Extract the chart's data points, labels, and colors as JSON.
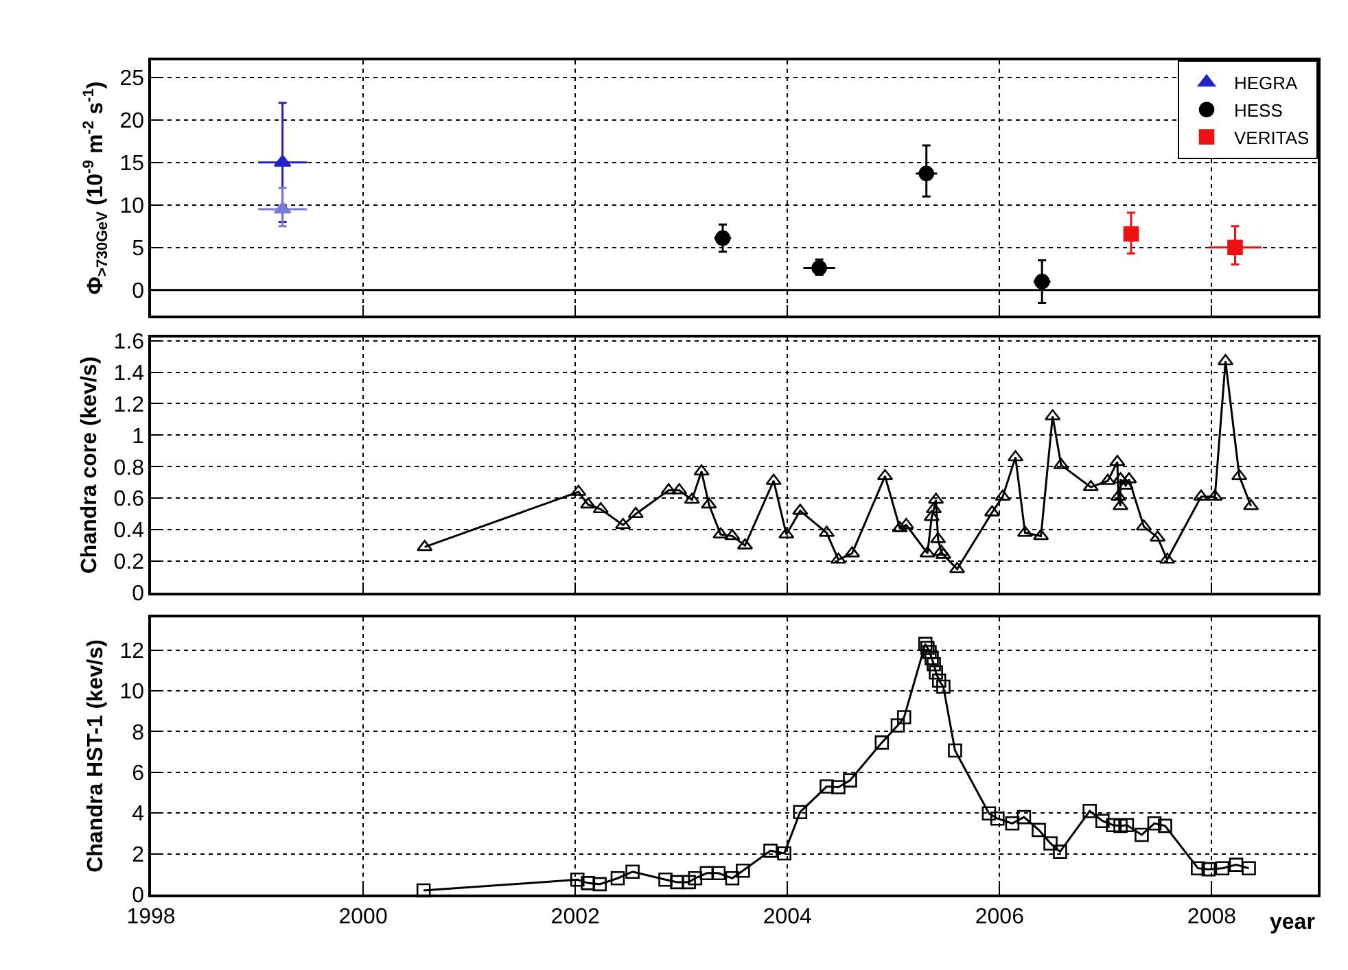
{
  "chart_data": [
    {
      "type": "scatter",
      "ylabel": "Φ$_{>730GeV}$ (10$^{-9}$ m$^{-2}$ s$^{-1}$)",
      "xlim": [
        1998,
        2009
      ],
      "xticks": [
        1998,
        2000,
        2002,
        2004,
        2006,
        2008
      ],
      "ylim": [
        -3,
        27
      ],
      "yticks": [
        0,
        5,
        10,
        15,
        20,
        25
      ],
      "grid": true,
      "legend": "top right",
      "tick_labels": "y",
      "ref_lines": [
        {
          "axis": "y",
          "value": 0,
          "color": "#000000",
          "line_style": "solid"
        }
      ],
      "series": [
        {
          "name": "HEGRA",
          "color": "#2222cc",
          "marker": "triangle",
          "x": [
            1999.24
          ],
          "values": [
            15
          ],
          "errors": [
            [
              8,
              22
            ]
          ],
          "xerrors": [
            0.23
          ]
        },
        {
          "color": "#7b7bd6",
          "marker": "triangle",
          "x": [
            1999.24
          ],
          "values": [
            9.5
          ],
          "errors": [
            [
              7.5,
              12
            ]
          ],
          "xerrors": [
            0.23
          ]
        },
        {
          "name": "HESS",
          "color": "#000000",
          "marker": "circle",
          "x": [
            2003.39,
            2004.3,
            2005.31,
            2006.4
          ],
          "values": [
            6.1,
            2.6,
            13.7,
            1.0
          ],
          "errors": [
            [
              4.5,
              7.7
            ],
            [
              1.8,
              3.6
            ],
            [
              11,
              17
            ],
            [
              -1.5,
              3.5
            ]
          ],
          "xerrors": [
            0.08,
            0.15,
            0.1,
            0.08
          ]
        },
        {
          "name": "VERITAS",
          "color": "#ee1111",
          "marker": "square",
          "x": [
            2007.24,
            2008.22
          ],
          "values": [
            6.6,
            5.0
          ],
          "errors": [
            [
              4.3,
              9.1
            ],
            [
              3,
              7.5
            ]
          ],
          "xerrors": [
            0.05,
            0.25
          ]
        }
      ]
    },
    {
      "type": "line",
      "ylabel": "Chandra core (kev/s)",
      "xlim": [
        1998,
        2009
      ],
      "xticks": [
        1998,
        2000,
        2002,
        2004,
        2006,
        2008
      ],
      "ylim": [
        0,
        1.62
      ],
      "yticks": [
        0,
        0.2,
        0.4,
        0.6,
        0.8,
        1,
        1.2,
        1.4,
        1.6
      ],
      "grid": true,
      "tick_labels": "y",
      "marker": "triangle",
      "series": [
        {
          "color": "#000000",
          "x": [
            2000.58,
            2002.03,
            2002.12,
            2002.24,
            2002.45,
            2002.57,
            2002.88,
            2002.98,
            2003.1,
            2003.19,
            2003.26,
            2003.37,
            2003.48,
            2003.6,
            2003.87,
            2003.99,
            2004.12,
            2004.37,
            2004.48,
            2004.61,
            2004.92,
            2005.06,
            2005.12,
            2005.32,
            2005.36,
            2005.38,
            2005.4,
            2005.42,
            2005.45,
            2005.47,
            2005.6,
            2005.93,
            2006.03,
            2006.15,
            2006.24,
            2006.39,
            2006.5,
            2006.58,
            2006.86,
            2007.02,
            2007.11,
            2007.12,
            2007.14,
            2007.14,
            2007.19,
            2007.22,
            2007.36,
            2007.49,
            2007.58,
            2007.9,
            2008.03,
            2008.13,
            2008.26,
            2008.37
          ],
          "values": [
            0.29,
            0.64,
            0.56,
            0.53,
            0.43,
            0.5,
            0.65,
            0.65,
            0.59,
            0.77,
            0.56,
            0.37,
            0.36,
            0.3,
            0.71,
            0.37,
            0.52,
            0.38,
            0.21,
            0.25,
            0.74,
            0.41,
            0.43,
            0.25,
            0.48,
            0.53,
            0.59,
            0.34,
            0.26,
            0.24,
            0.15,
            0.51,
            0.61,
            0.86,
            0.38,
            0.36,
            1.12,
            0.81,
            0.67,
            0.71,
            0.83,
            0.61,
            0.55,
            0.72,
            0.68,
            0.72,
            0.42,
            0.35,
            0.21,
            0.61,
            0.61,
            1.47,
            0.74,
            0.55
          ]
        }
      ]
    },
    {
      "type": "line",
      "ylabel": "Chandra HST-1 (kev/s)",
      "xlabel": "year",
      "xlim": [
        1998,
        2009
      ],
      "xticks": [
        1998,
        2000,
        2002,
        2004,
        2006,
        2008
      ],
      "ylim": [
        0,
        13.6
      ],
      "yticks": [
        0,
        2,
        4,
        6,
        8,
        10,
        12
      ],
      "grid": true,
      "marker": "square",
      "series": [
        {
          "color": "#000000",
          "x": [
            2000.57,
            2002.02,
            2002.12,
            2002.23,
            2002.4,
            2002.54,
            2002.85,
            2002.96,
            2003.07,
            2003.13,
            2003.24,
            2003.35,
            2003.48,
            2003.58,
            2003.84,
            2003.97,
            2004.12,
            2004.37,
            2004.48,
            2004.59,
            2004.89,
            2005.04,
            2005.1,
            2005.3,
            2005.32,
            2005.34,
            2005.36,
            2005.38,
            2005.4,
            2005.43,
            2005.47,
            2005.58,
            2005.9,
            2005.98,
            2006.12,
            2006.23,
            2006.37,
            2006.48,
            2006.57,
            2006.85,
            2006.97,
            2007.07,
            2007.14,
            2007.2,
            2007.34,
            2007.46,
            2007.56,
            2007.87,
            2007.97,
            2008.1,
            2008.23,
            2008.35
          ],
          "values": [
            0.2,
            0.73,
            0.56,
            0.51,
            0.8,
            1.12,
            0.73,
            0.61,
            0.61,
            0.8,
            1.05,
            1.05,
            0.8,
            1.17,
            2.15,
            2.02,
            4.05,
            5.3,
            5.27,
            5.6,
            7.46,
            8.3,
            8.7,
            12.3,
            12.1,
            11.9,
            11.6,
            11.3,
            10.9,
            10.5,
            10.2,
            7.07,
            3.98,
            3.73,
            3.49,
            3.8,
            3.17,
            2.51,
            2.1,
            4.1,
            3.61,
            3.41,
            3.37,
            3.41,
            2.93,
            3.49,
            3.37,
            1.29,
            1.24,
            1.29,
            1.46,
            1.29
          ]
        }
      ]
    }
  ]
}
